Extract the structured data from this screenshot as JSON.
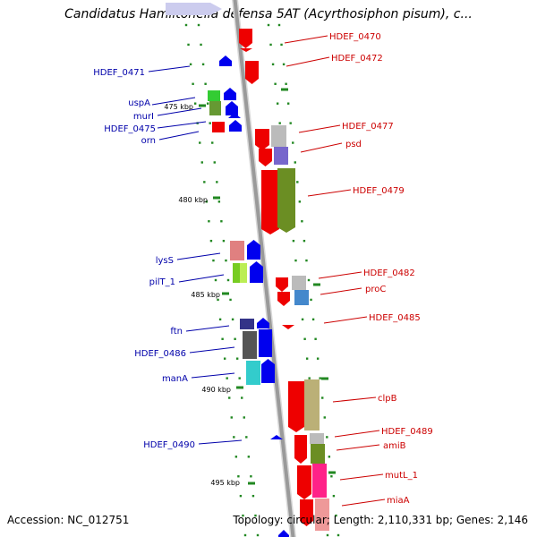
{
  "title": "Candidatus Hamiltonella defensa 5AT (Acyrthosiphon pisum), c...",
  "footer": {
    "accession": "Accession: NC_012751",
    "summary": "Topology: circular; Length: 2,110,331 bp; Genes: 2,146"
  },
  "scale_labels": [
    {
      "id": "kbp-475",
      "text": "475 kbp"
    },
    {
      "id": "kbp-480",
      "text": "480 kbp"
    },
    {
      "id": "kbp-485",
      "text": "485 kbp"
    },
    {
      "id": "kbp-490",
      "text": "490 kbp"
    },
    {
      "id": "kbp-495",
      "text": "495 kbp"
    }
  ],
  "gene_labels_left": [
    {
      "id": "HDEF_0471",
      "text": "HDEF_0471"
    },
    {
      "id": "uspA",
      "text": "uspA"
    },
    {
      "id": "murI",
      "text": "murI"
    },
    {
      "id": "HDEF_0475",
      "text": "HDEF_0475"
    },
    {
      "id": "orn",
      "text": "orn"
    },
    {
      "id": "lysS",
      "text": "lysS"
    },
    {
      "id": "pilT_1",
      "text": "pilT_1"
    },
    {
      "id": "ftn",
      "text": "ftn"
    },
    {
      "id": "HDEF_0486",
      "text": "HDEF_0486"
    },
    {
      "id": "manA",
      "text": "manA"
    },
    {
      "id": "HDEF_0490",
      "text": "HDEF_0490"
    }
  ],
  "gene_labels_right": [
    {
      "id": "HDEF_0470",
      "text": "HDEF_0470"
    },
    {
      "id": "HDEF_0472",
      "text": "HDEF_0472"
    },
    {
      "id": "HDEF_0477",
      "text": "HDEF_0477"
    },
    {
      "id": "psd",
      "text": "psd"
    },
    {
      "id": "HDEF_0479",
      "text": "HDEF_0479"
    },
    {
      "id": "HDEF_0482",
      "text": "HDEF_0482"
    },
    {
      "id": "proC",
      "text": "proC"
    },
    {
      "id": "HDEF_0485",
      "text": "HDEF_0485"
    },
    {
      "id": "clpB",
      "text": "clpB"
    },
    {
      "id": "HDEF_0489",
      "text": "HDEF_0489"
    },
    {
      "id": "amiB",
      "text": "amiB"
    },
    {
      "id": "mutL_1",
      "text": "mutL_1"
    },
    {
      "id": "miaA",
      "text": "miaA"
    }
  ],
  "colors": {
    "forward_gene": "#ee0000",
    "reverse_gene": "#0000ee",
    "forward_label": "#cc0000",
    "reverse_label": "#0000aa",
    "backbone": "#9a9a9a",
    "tick": "#228822"
  }
}
